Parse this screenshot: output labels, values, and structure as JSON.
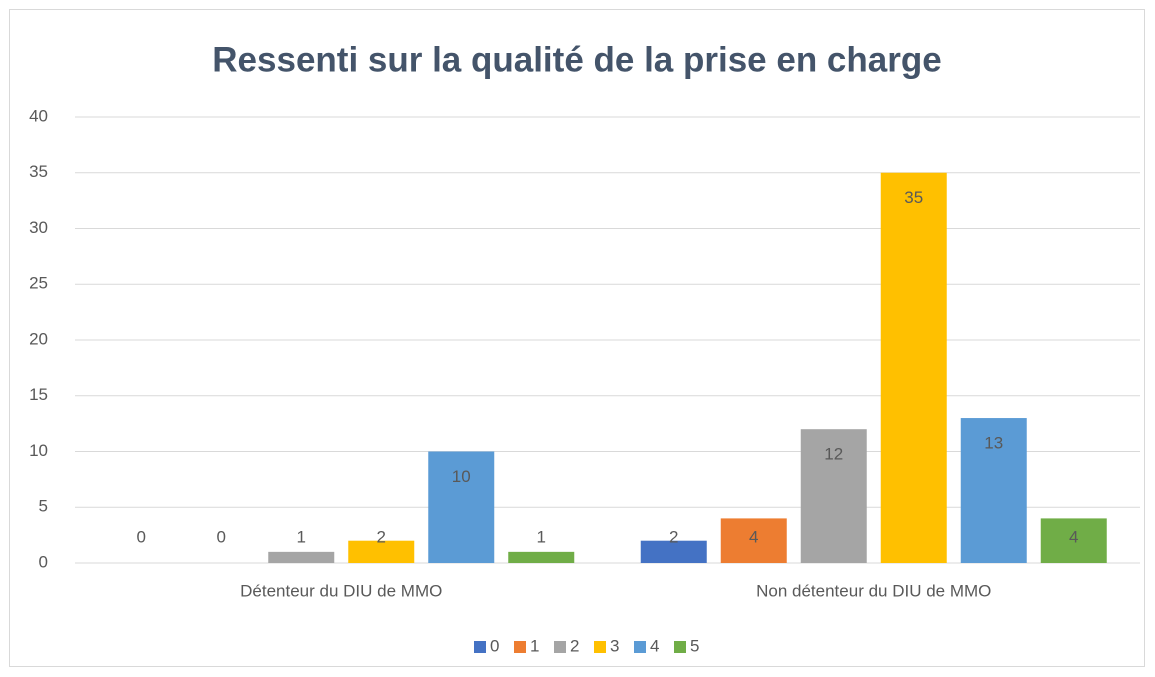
{
  "chart_data": {
    "type": "bar",
    "title": "Ressenti sur la qualité de la prise en charge",
    "categories": [
      "Détenteur du DIU de MMO",
      "Non détenteur du DIU de MMO"
    ],
    "series": [
      {
        "name": "0",
        "color": "#4472c4",
        "values": [
          0,
          2
        ]
      },
      {
        "name": "1",
        "color": "#ed7d31",
        "values": [
          0,
          4
        ]
      },
      {
        "name": "2",
        "color": "#a5a5a5",
        "values": [
          1,
          12
        ]
      },
      {
        "name": "3",
        "color": "#ffc000",
        "values": [
          2,
          35
        ]
      },
      {
        "name": "4",
        "color": "#5b9bd5",
        "values": [
          10,
          13
        ]
      },
      {
        "name": "5",
        "color": "#70ad47",
        "values": [
          1,
          4
        ]
      }
    ],
    "ylim": [
      0,
      40
    ],
    "yticks": [
      0,
      5,
      10,
      15,
      20,
      25,
      30,
      35,
      40
    ],
    "grid": true,
    "legend": "bottom"
  }
}
